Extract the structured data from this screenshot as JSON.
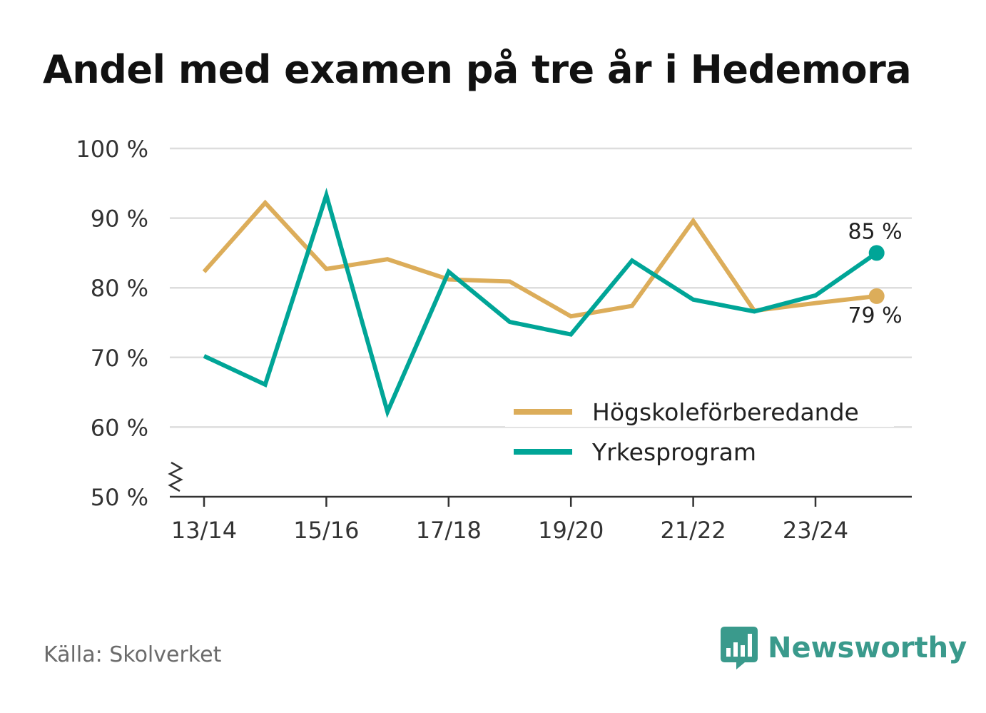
{
  "title": "Andel med examen på tre år i Hedemora",
  "source": "Källa: Skolverket",
  "brand": {
    "name": "Newsworthy",
    "icon": "newsworthy-logo-icon"
  },
  "colors": {
    "series1": "#dcad5a",
    "series2": "#00a597",
    "grid": "#dddddd",
    "axis": "#333333",
    "brand": "#3a9a8c"
  },
  "chart_data": {
    "type": "line",
    "title": "Andel med examen på tre år i Hedemora",
    "xlabel": "",
    "ylabel": "",
    "x": [
      "13/14",
      "14/15",
      "15/16",
      "16/17",
      "17/18",
      "18/19",
      "19/20",
      "20/21",
      "21/22",
      "22/23",
      "23/24",
      "24/25"
    ],
    "tick_labels": [
      "13/14",
      "15/16",
      "17/18",
      "19/20",
      "21/22",
      "23/24"
    ],
    "y_ticks": [
      50,
      60,
      70,
      80,
      90,
      100
    ],
    "y_tick_labels": [
      "50 %",
      "60 %",
      "70 %",
      "80 %",
      "90 %",
      "100 %"
    ],
    "ylim": [
      50,
      100
    ],
    "grid": true,
    "legend_position": "bottom-right",
    "series": [
      {
        "name": "Högskoleförberedande",
        "color": "#dcad5a",
        "values": [
          82.3,
          92.2,
          82.7,
          84.1,
          81.2,
          80.9,
          75.9,
          77.4,
          89.6,
          76.7,
          77.8,
          78.8
        ],
        "end_label": "79 %"
      },
      {
        "name": "Yrkesprogram",
        "color": "#00a597",
        "values": [
          70.2,
          66.1,
          93.3,
          62.2,
          82.3,
          75.1,
          73.3,
          83.9,
          78.3,
          76.6,
          78.9,
          85.0
        ],
        "end_label": "85 %"
      }
    ]
  }
}
